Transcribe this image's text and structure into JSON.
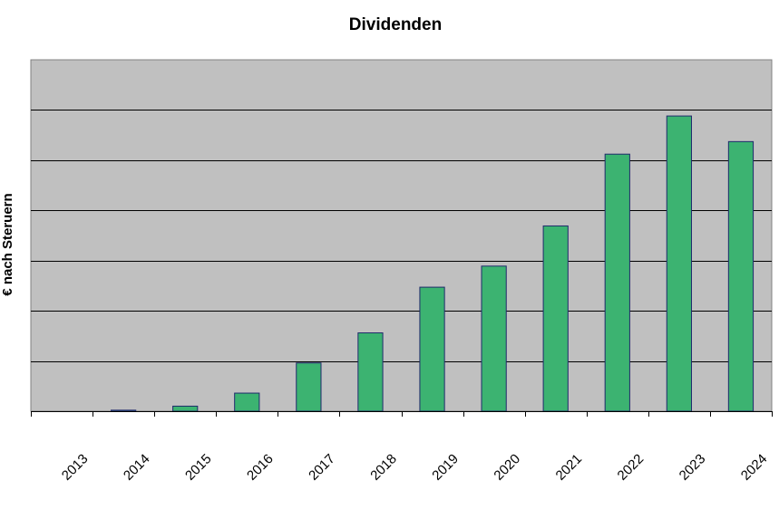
{
  "chart_data": {
    "type": "bar",
    "title": "Dividenden",
    "xlabel": "",
    "ylabel": "€ nach Steruern",
    "categories": [
      "2013",
      "2014",
      "2015",
      "2016",
      "2017",
      "2018",
      "2019",
      "2020",
      "2021",
      "2022",
      "2023",
      "2024"
    ],
    "values": [
      0,
      0.02,
      0.1,
      0.36,
      0.96,
      1.56,
      2.47,
      2.89,
      3.69,
      5.12,
      5.88,
      5.37
    ],
    "ylim": [
      0,
      7
    ],
    "grid": true,
    "y_tick_labels_visible": false,
    "legend": "none",
    "colors": {
      "bar_fill": "#3cb371",
      "bar_stroke": "#1f2a6b",
      "plot_background": "#c0c0c0",
      "gridline": "#000000"
    }
  }
}
